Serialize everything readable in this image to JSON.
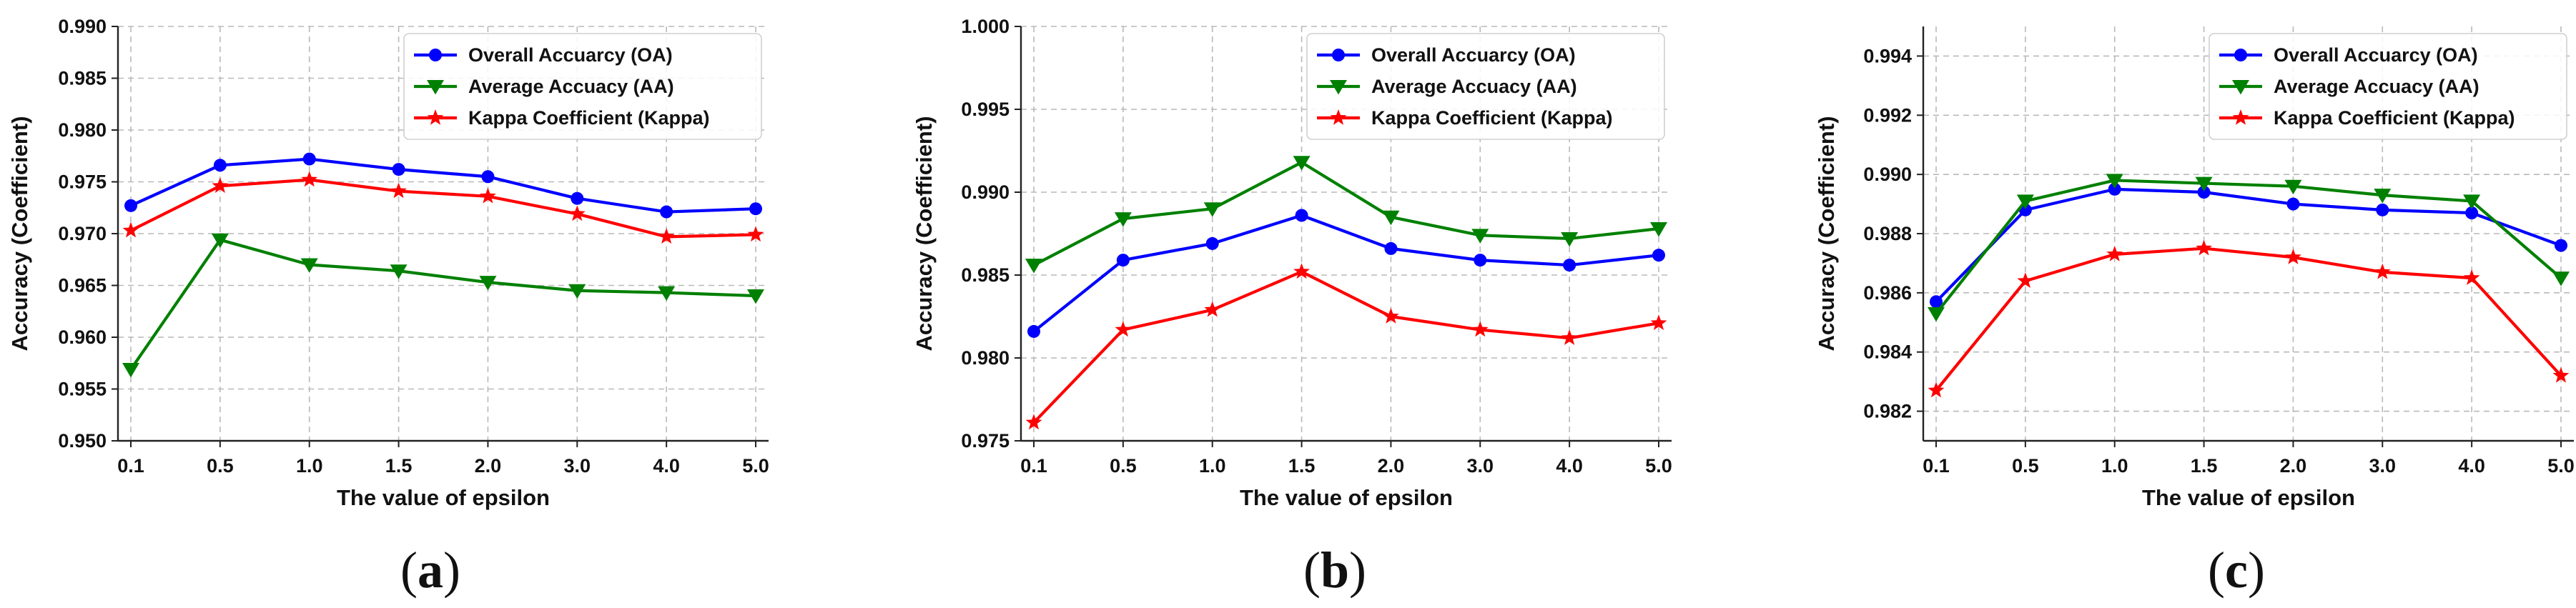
{
  "figure": {
    "series_style": [
      {
        "name": "Overall Accuarcy (OA)",
        "color": "#0000ff",
        "marker": "circle"
      },
      {
        "name": "Average Accuacy (AA)",
        "color": "#008000",
        "marker": "triangle-down"
      },
      {
        "name": "Kappa Coefficient (Kappa)",
        "color": "#ff0000",
        "marker": "star"
      }
    ]
  },
  "chart_data": [
    {
      "panel": "a",
      "type": "line",
      "title": "",
      "xlabel": "The value of epsilon",
      "ylabel": "Accuracy (Coefficient)",
      "categories": [
        "0.1",
        "0.5",
        "1.0",
        "1.5",
        "2.0",
        "3.0",
        "4.0",
        "5.0"
      ],
      "ylim": [
        0.95,
        0.99
      ],
      "yticks": [
        "0.950",
        "0.955",
        "0.960",
        "0.965",
        "0.970",
        "0.975",
        "0.980",
        "0.985",
        "0.990"
      ],
      "grid": true,
      "legend": "top-right",
      "series": [
        {
          "name": "Overall Accuarcy (OA)",
          "values": [
            0.9727,
            0.9766,
            0.9772,
            0.9762,
            0.9755,
            0.9734,
            0.9721,
            0.9724
          ]
        },
        {
          "name": "Average Accuacy (AA)",
          "values": [
            0.9569,
            0.9694,
            0.967,
            0.9664,
            0.9653,
            0.9645,
            0.9643,
            0.964
          ]
        },
        {
          "name": "Kappa Coefficient (Kappa)",
          "values": [
            0.9703,
            0.9746,
            0.9752,
            0.9741,
            0.9736,
            0.9719,
            0.9697,
            0.9699
          ]
        }
      ]
    },
    {
      "panel": "b",
      "type": "line",
      "title": "",
      "xlabel": "The value of epsilon",
      "ylabel": "Accuracy (Coefficient)",
      "categories": [
        "0.1",
        "0.5",
        "1.0",
        "1.5",
        "2.0",
        "3.0",
        "4.0",
        "5.0"
      ],
      "ylim": [
        0.975,
        1.0
      ],
      "yticks": [
        "0.975",
        "0.980",
        "0.985",
        "0.990",
        "0.995",
        "1.000"
      ],
      "grid": true,
      "legend": "top-right",
      "series": [
        {
          "name": "Overall Accuarcy (OA)",
          "values": [
            0.9816,
            0.9859,
            0.9869,
            0.9886,
            0.9866,
            0.9859,
            0.9856,
            0.9862
          ]
        },
        {
          "name": "Average Accuacy (AA)",
          "values": [
            0.9856,
            0.9884,
            0.989,
            0.9918,
            0.9885,
            0.9874,
            0.9872,
            0.9878
          ]
        },
        {
          "name": "Kappa Coefficient (Kappa)",
          "values": [
            0.9761,
            0.9817,
            0.9829,
            0.9852,
            0.9825,
            0.9817,
            0.9812,
            0.9821
          ]
        }
      ]
    },
    {
      "panel": "c",
      "type": "line",
      "title": "",
      "xlabel": "The value of epsilon",
      "ylabel": "Accuracy (Coefficient)",
      "categories": [
        "0.1",
        "0.5",
        "1.0",
        "1.5",
        "2.0",
        "3.0",
        "4.0",
        "5.0"
      ],
      "ylim": [
        0.981,
        0.995
      ],
      "yticks": [
        "0.982",
        "0.984",
        "0.986",
        "0.988",
        "0.990",
        "0.992",
        "0.994"
      ],
      "grid": true,
      "legend": "top-right",
      "series": [
        {
          "name": "Overall Accuarcy (OA)",
          "values": [
            0.9857,
            0.9888,
            0.9895,
            0.9894,
            0.989,
            0.9888,
            0.9887,
            0.9876
          ]
        },
        {
          "name": "Average Accuacy (AA)",
          "values": [
            0.9853,
            0.9891,
            0.9898,
            0.9897,
            0.9896,
            0.9893,
            0.9891,
            0.9865
          ]
        },
        {
          "name": "Kappa Coefficient (Kappa)",
          "values": [
            0.9827,
            0.9864,
            0.9873,
            0.9875,
            0.9872,
            0.9867,
            0.9865,
            0.9832
          ]
        }
      ]
    }
  ],
  "panel_labels": [
    "(a)",
    "(b)",
    "(c)"
  ]
}
